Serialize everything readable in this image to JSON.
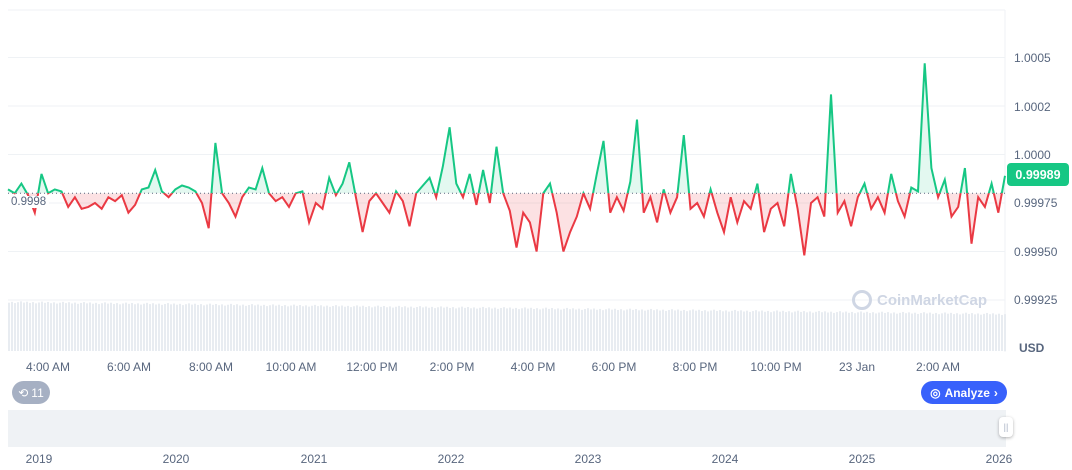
{
  "chart_data": {
    "type": "line",
    "title": "",
    "ylabel": "USD",
    "ylim": [
      0.99925,
      1.0005
    ],
    "baseline": 0.9998,
    "baseline_label": "0.9998",
    "current_price": "0.99989",
    "y_ticks": [
      "1.0005",
      "1.0002",
      "1.0000",
      "0.99975",
      "0.99950",
      "0.99925"
    ],
    "y_tick_values": [
      1.0005,
      1.00025,
      1.0,
      0.99975,
      0.9995,
      0.99925
    ],
    "x_ticks": [
      "4:00 AM",
      "6:00 AM",
      "8:00 AM",
      "10:00 AM",
      "12:00 PM",
      "2:00 PM",
      "4:00 PM",
      "6:00 PM",
      "8:00 PM",
      "10:00 PM",
      "23 Jan",
      "2:00 AM"
    ],
    "navigator_years": [
      "2019",
      "2020",
      "2021",
      "2022",
      "2023",
      "2024",
      "2025",
      "2026"
    ],
    "colors": {
      "up": "#16c784",
      "down": "#ea3943",
      "accent": "#3861fb"
    },
    "values": [
      0.99982,
      0.9998,
      0.99985,
      0.99979,
      0.9997,
      0.9999,
      0.9998,
      0.99982,
      0.99981,
      0.99973,
      0.99978,
      0.99972,
      0.99973,
      0.99975,
      0.99972,
      0.99978,
      0.99976,
      0.99979,
      0.9997,
      0.99974,
      0.99982,
      0.99983,
      0.99992,
      0.99981,
      0.99978,
      0.99982,
      0.99984,
      0.99983,
      0.99981,
      0.99975,
      0.99962,
      1.00006,
      0.9998,
      0.99975,
      0.99968,
      0.99978,
      0.99983,
      0.99982,
      0.99993,
      0.9998,
      0.99976,
      0.99978,
      0.99973,
      0.9998,
      0.99981,
      0.99965,
      0.99975,
      0.99972,
      0.99988,
      0.99979,
      0.99985,
      0.99996,
      0.99978,
      0.9996,
      0.99976,
      0.9998,
      0.99975,
      0.9997,
      0.99981,
      0.99976,
      0.99963,
      0.9998,
      0.99984,
      0.99988,
      0.99978,
      0.99994,
      1.00014,
      0.99985,
      0.99978,
      0.9999,
      0.99974,
      0.99992,
      0.99975,
      1.00004,
      0.9998,
      0.99971,
      0.99952,
      0.9997,
      0.99965,
      0.9995,
      0.9998,
      0.99985,
      0.9997,
      0.9995,
      0.9996,
      0.99968,
      0.9998,
      0.99972,
      0.9999,
      1.00007,
      0.9997,
      0.99978,
      0.99971,
      0.99986,
      1.00018,
      0.9997,
      0.99978,
      0.99965,
      0.99982,
      0.9997,
      0.99978,
      1.0001,
      0.99972,
      0.99975,
      0.99968,
      0.99982,
      0.9997,
      0.9996,
      0.99978,
      0.99965,
      0.99976,
      0.99972,
      0.99985,
      0.9996,
      0.99972,
      0.99975,
      0.99963,
      0.9999,
      0.99972,
      0.99948,
      0.99975,
      0.99978,
      0.99968,
      1.00031,
      0.9997,
      0.99976,
      0.99963,
      0.99978,
      0.99985,
      0.99972,
      0.99978,
      0.9997,
      0.9999,
      0.99976,
      0.99968,
      0.99983,
      0.99981,
      1.00047,
      0.99993,
      0.99978,
      0.99987,
      0.99968,
      0.99973,
      0.99993,
      0.99954,
      0.99978,
      0.99973,
      0.99985,
      0.9997,
      0.99989
    ]
  },
  "watermark": "CoinMarketCap",
  "history_badge": "11",
  "analyze_label": "Analyze"
}
